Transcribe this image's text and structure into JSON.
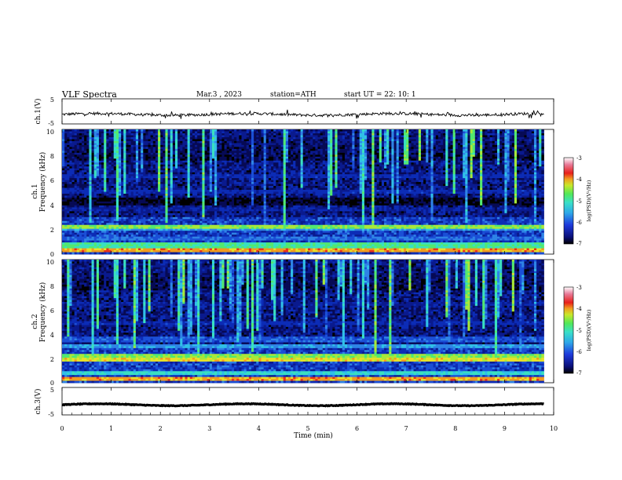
{
  "header": {
    "title": "VLF  Spectra",
    "date": "Mar.3  , 2023",
    "station": "station=ATH",
    "start_ut": "start  UT  =    22: 10: 1"
  },
  "chart_data": [
    {
      "type": "line",
      "name": "ch1-waveform",
      "ylabel": "ch.1(V)",
      "ylim": [
        -5,
        5
      ],
      "yticks": [
        "5",
        "-5"
      ],
      "baseline_volts": -1.2
    },
    {
      "type": "heatmap",
      "name": "ch1-spectrogram",
      "ylabel_channel": "ch.1",
      "ylabel": "Frequency  (kHz)",
      "ylim": [
        0,
        10
      ],
      "yticks": [
        "0",
        "2",
        "4",
        "6",
        "8",
        "10"
      ],
      "colorbar": {
        "label": "log(PSD)(V²/Hz)",
        "range": [
          -7,
          -3
        ],
        "ticks": [
          "-3",
          "-4",
          "-5",
          "-6",
          "-7"
        ]
      },
      "bands_khz": [
        {
          "f": 0.3,
          "level": -3.5
        },
        {
          "f": 0.7,
          "level": -4.5
        },
        {
          "f": 1.2,
          "level": -5.5
        },
        {
          "f": 2.0,
          "level": -5.2
        },
        {
          "f": 2.2,
          "level": -4.2
        },
        {
          "f": 3.6,
          "level": -6.2
        },
        {
          "f": 5.0,
          "level": -6.0
        },
        {
          "f": 6.2,
          "level": -6.0
        }
      ],
      "quiet_band_khz": [
        3.9,
        4.6
      ]
    },
    {
      "type": "heatmap",
      "name": "ch2-spectrogram",
      "ylabel_channel": "ch.2",
      "ylabel": "Frequency  (kHz)",
      "ylim": [
        0,
        10
      ],
      "yticks": [
        "0",
        "2",
        "4",
        "6",
        "8",
        "10"
      ],
      "colorbar": {
        "label": "log(PSD)(V²/Hz)",
        "range": [
          -7,
          -3
        ],
        "ticks": [
          "-3",
          "-4",
          "-5",
          "-6",
          "-7"
        ]
      },
      "bands_khz": [
        {
          "f": 0.3,
          "level": -3.5
        },
        {
          "f": 0.8,
          "level": -4.8
        },
        {
          "f": 1.9,
          "level": -3.8
        },
        {
          "f": 2.1,
          "level": -4.2
        },
        {
          "f": 3.0,
          "level": -5.2
        },
        {
          "f": 3.5,
          "level": -5.6
        },
        {
          "f": 4.8,
          "level": -6.0
        },
        {
          "f": 6.4,
          "level": -6.2
        }
      ]
    },
    {
      "type": "line",
      "name": "ch3-waveform",
      "ylabel": "ch.3(V)",
      "ylim": [
        -5,
        5
      ],
      "yticks": [
        "5",
        "-5"
      ],
      "baseline_volts": -1.3
    }
  ],
  "time_axis": {
    "xlabel": "Time  (min)",
    "xlim": [
      0,
      10
    ],
    "xticks": [
      "0",
      "1",
      "2",
      "3",
      "4",
      "5",
      "6",
      "7",
      "8",
      "9",
      "10"
    ],
    "data_end_min": 9.8
  },
  "palette": [
    "#000000",
    "#0a0f78",
    "#0a2aa8",
    "#1e5ad8",
    "#2ea8e8",
    "#3ae0c8",
    "#52e878",
    "#9ae83a",
    "#e8e62a",
    "#f0a020",
    "#e83a1e",
    "#e86a8a",
    "#ffffff"
  ]
}
